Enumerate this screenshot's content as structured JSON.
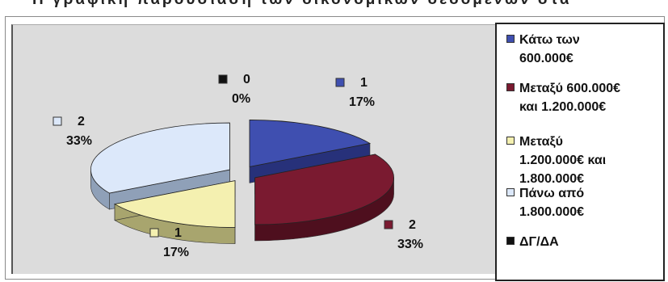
{
  "page": {
    "top_caption": "Η γραφική παρουσίαση των οικονομικών δεδομένων στα"
  },
  "chart_data": {
    "type": "pie",
    "categories": [
      "Κάτω των 600.000€",
      "Μεταξύ 600.000€ και 1.200.000€",
      "Μεταξύ 1.200.000€ και 1.800.000€",
      "Πάνω από 1.800.000€",
      "ΔΓ/ΔΑ"
    ],
    "values": [
      1,
      2,
      1,
      2,
      0
    ],
    "data_labels": [
      {
        "value": "1",
        "percent": "17%"
      },
      {
        "value": "2",
        "percent": "33%"
      },
      {
        "value": "1",
        "percent": "17%"
      },
      {
        "value": "2",
        "percent": "33%"
      },
      {
        "value": "0",
        "percent": "0%"
      }
    ],
    "colors": [
      "#3f4fb0",
      "#7a1a30",
      "#f4f0b0",
      "#dce8fa",
      "#1a1a1a"
    ],
    "side_colors": [
      "#27317a",
      "#4e0f1e",
      "#a8a56e",
      "#8fa0b8",
      "#111111"
    ],
    "legend": {
      "position": "right",
      "entries": [
        {
          "label": "Κάτω των\n600.000€"
        },
        {
          "label": "Μεταξύ 600.000€\nκαι 1.200.000€"
        },
        {
          "label": "Μεταξύ\n1.200.000€ και\n1.800.000€"
        },
        {
          "label": "Πάνω από\n1.800.000€"
        },
        {
          "label": "ΔΓ/ΔΑ"
        }
      ]
    },
    "exploded": true,
    "three_d": true
  }
}
